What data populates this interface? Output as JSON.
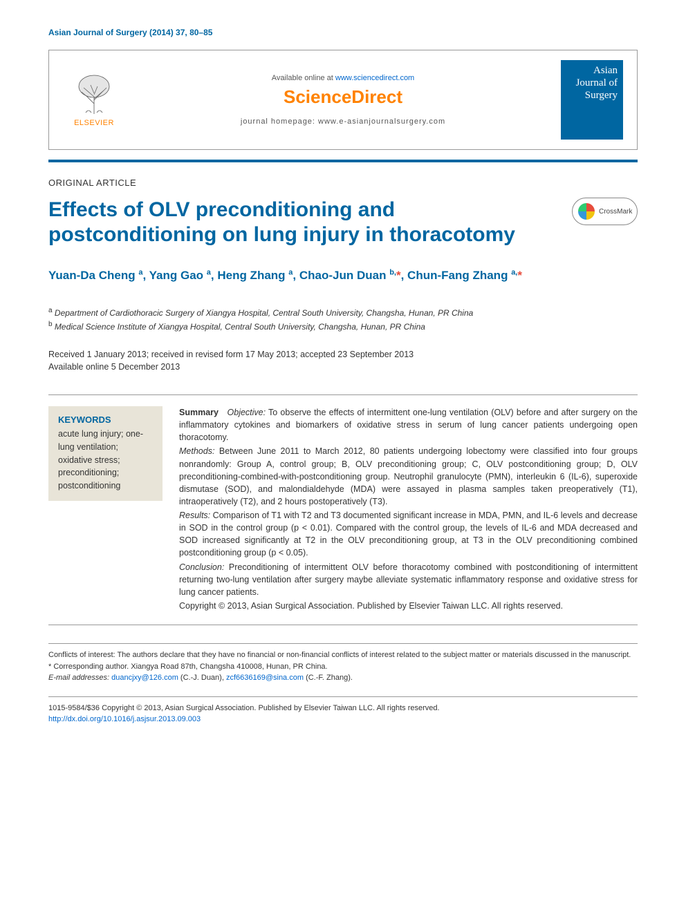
{
  "journal_ref": "Asian Journal of Surgery (2014) 37, 80–85",
  "header": {
    "available_prefix": "Available online at ",
    "available_link": "www.sciencedirect.com",
    "brand": "ScienceDirect",
    "homepage_label": "journal homepage: ",
    "homepage_url": "www.e-asianjournalsurgery.com",
    "publisher": "ELSEVIER",
    "cover_title": "Asian Journal of Surgery"
  },
  "crossmark_label": "CrossMark",
  "article_type": "ORIGINAL ARTICLE",
  "title": "Effects of OLV preconditioning and postconditioning on lung injury in thoracotomy",
  "authors_html": "Yuan-Da Cheng <sup>a</sup>, Yang Gao <sup>a</sup>, Heng Zhang <sup>a</sup>, Chao-Jun Duan <sup>b,</sup><span class='aster'>*</span>, Chun-Fang Zhang <sup>a,</sup><span class='aster'>*</span>",
  "affiliations": {
    "a": "Department of Cardiothoracic Surgery of Xiangya Hospital, Central South University, Changsha, Hunan, PR China",
    "b": "Medical Science Institute of Xiangya Hospital, Central South University, Changsha, Hunan, PR China"
  },
  "dates": {
    "line1": "Received 1 January 2013; received in revised form 17 May 2013; accepted 23 September 2013",
    "line2": "Available online 5 December 2013"
  },
  "keywords": {
    "heading": "KEYWORDS",
    "items": "acute lung injury; one-lung ventilation; oxidative stress; preconditioning; postconditioning"
  },
  "abstract": {
    "summary_label": "Summary",
    "objective_label": "Objective:",
    "objective": " To observe the effects of intermittent one-lung ventilation (OLV) before and after surgery on the inflammatory cytokines and biomarkers of oxidative stress in serum of lung cancer patients undergoing open thoracotomy.",
    "methods_label": "Methods:",
    "methods": " Between June 2011 to March 2012, 80 patients undergoing lobectomy were classified into four groups nonrandomly: Group A, control group; B, OLV preconditioning group; C, OLV postconditioning group; D, OLV preconditioning-combined-with-postconditioning group. Neutrophil granulocyte (PMN), interleukin 6 (IL-6), superoxide dismutase (SOD), and malondialdehyde (MDA) were assayed in plasma samples taken preoperatively (T1), intraoperatively (T2), and 2 hours postoperatively (T3).",
    "results_label": "Results:",
    "results": " Comparison of T1 with T2 and T3 documented significant increase in MDA, PMN, and IL-6 levels and decrease in SOD in the control group (p < 0.01). Compared with the control group, the levels of IL-6 and MDA decreased and SOD increased significantly at T2 in the OLV preconditioning group, at T3 in the OLV preconditioning combined postconditioning group (p < 0.05).",
    "conclusion_label": "Conclusion:",
    "conclusion": " Preconditioning of intermittent OLV before thoracotomy combined with postconditioning of intermittent returning two-lung ventilation after surgery maybe alleviate systematic inflammatory response and oxidative stress for lung cancer patients.",
    "copyright": "Copyright © 2013, Asian Surgical Association. Published by Elsevier Taiwan LLC. All rights reserved."
  },
  "footnotes": {
    "conflicts": "Conflicts of interest: The authors declare that they have no financial or non-financial conflicts of interest related to the subject matter or materials discussed in the manuscript.",
    "corresponding": "* Corresponding author. Xiangya Road 87th, Changsha 410008, Hunan, PR China.",
    "email_label": "E-mail addresses: ",
    "email1": "duancjxy@126.com",
    "email1_name": " (C.-J. Duan), ",
    "email2": "zcf6636169@sina.com",
    "email2_name": " (C.-F. Zhang)."
  },
  "bottom": {
    "copyright": "1015-9584/$36 Copyright © 2013, Asian Surgical Association. Published by Elsevier Taiwan LLC. All rights reserved.",
    "doi": "http://dx.doi.org/10.1016/j.asjsur.2013.09.003"
  },
  "colors": {
    "primary_blue": "#0066a1",
    "link_blue": "#0066cc",
    "orange": "#ff8200",
    "keyword_bg": "#e8e4d8",
    "text": "#333333"
  }
}
